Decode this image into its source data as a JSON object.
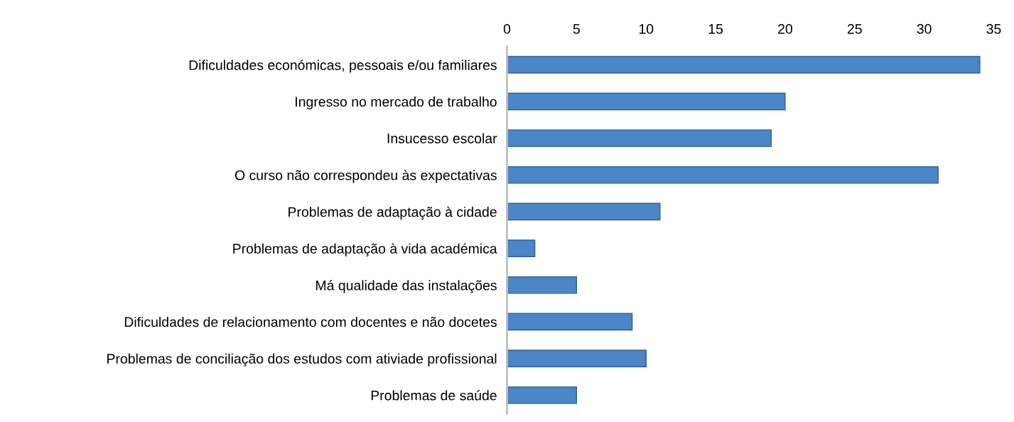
{
  "chart_data": {
    "type": "bar",
    "orientation": "horizontal",
    "categories": [
      "Dificuldades económicas, pessoais e/ou familiares",
      "Ingresso no mercado de trabalho",
      "Insucesso escolar",
      "O curso não correspondeu às expectativas",
      "Problemas de adaptação à cidade",
      "Problemas de adaptação à vida académica",
      "Má qualidade das instalações",
      "Dificuldades de relacionamento com docentes e não docetes",
      "Problemas de conciliação dos estudos com ativiade profissional",
      "Problemas de saúde"
    ],
    "values": [
      34,
      20,
      19,
      31,
      11,
      2,
      5,
      9,
      10,
      5
    ],
    "color": "#4a86c8",
    "xlim": [
      0,
      35
    ],
    "xticks": [
      0,
      5,
      10,
      15,
      20,
      25,
      30,
      35
    ],
    "grid": false
  }
}
